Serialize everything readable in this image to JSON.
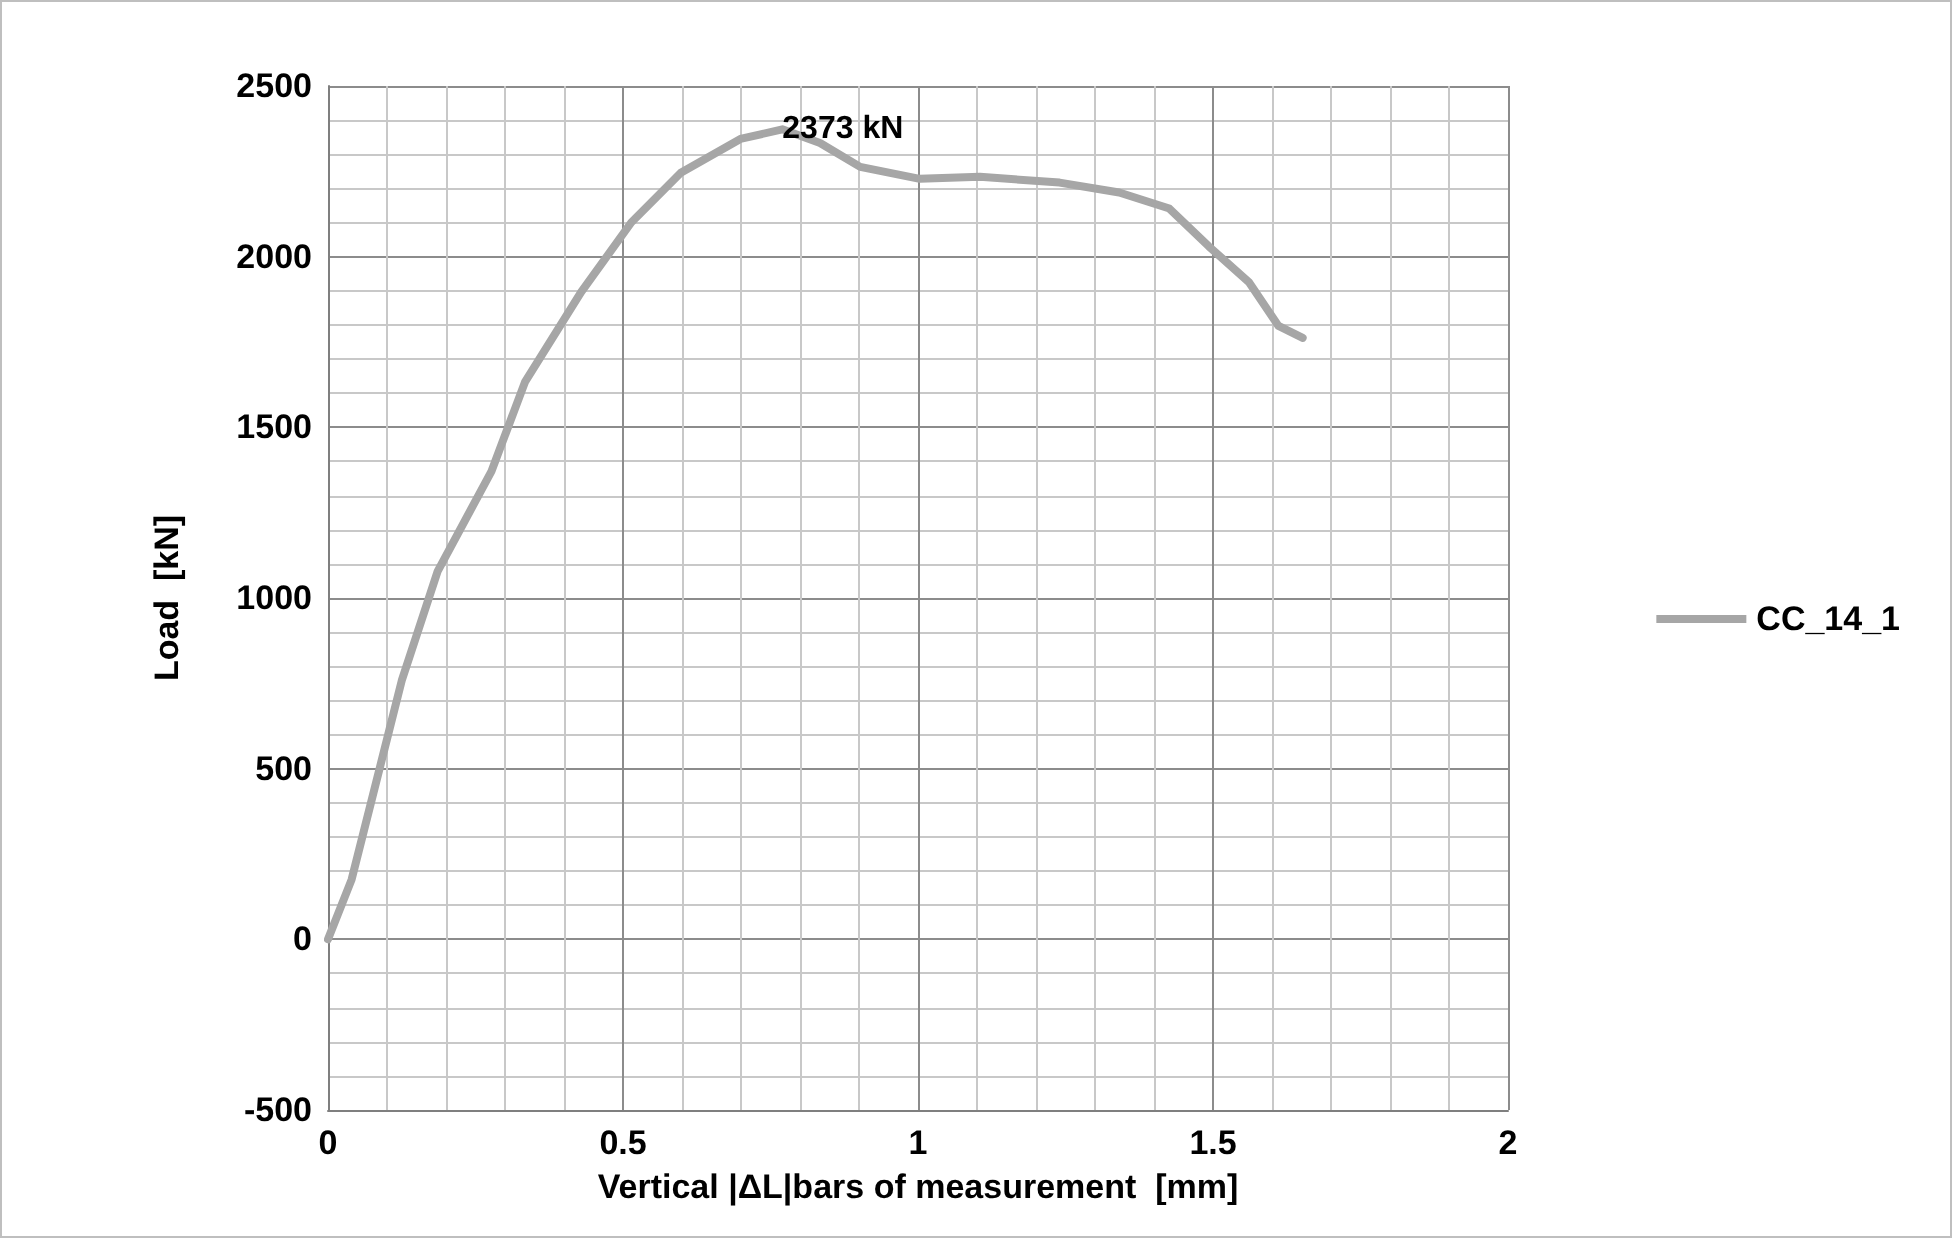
{
  "chart_data": {
    "type": "line",
    "xlabel": "Vertical |ΔL|bars of measurement  [mm]",
    "ylabel": "Load  [kN]",
    "xlim": [
      0,
      2
    ],
    "xticks": [
      0,
      0.5,
      1,
      1.5,
      2
    ],
    "ylim": [
      -500,
      2500
    ],
    "yticks": [
      -500,
      0,
      500,
      1000,
      1500,
      2000,
      2500
    ],
    "grid": true,
    "legend": "right",
    "annotations": [
      {
        "text": "2373 kN",
        "x": 0.77,
        "y": 2373
      }
    ],
    "series": [
      {
        "name": "CC_14_1",
        "color": "#a6a6a6",
        "x": [
          0,
          0.04,
          0.074,
          0.125,
          0.186,
          0.277,
          0.334,
          0.429,
          0.514,
          0.598,
          0.699,
          0.77,
          0.834,
          0.902,
          1.003,
          1.105,
          1.24,
          1.341,
          1.426,
          1.493,
          1.561,
          1.611,
          1.652
        ],
        "values": [
          0,
          175,
          408,
          758,
          1079,
          1371,
          1633,
          1896,
          2100,
          2246,
          2345,
          2373,
          2333,
          2263,
          2228,
          2234,
          2217,
          2188,
          2141,
          2030,
          1925,
          1797,
          1762
        ]
      }
    ]
  }
}
